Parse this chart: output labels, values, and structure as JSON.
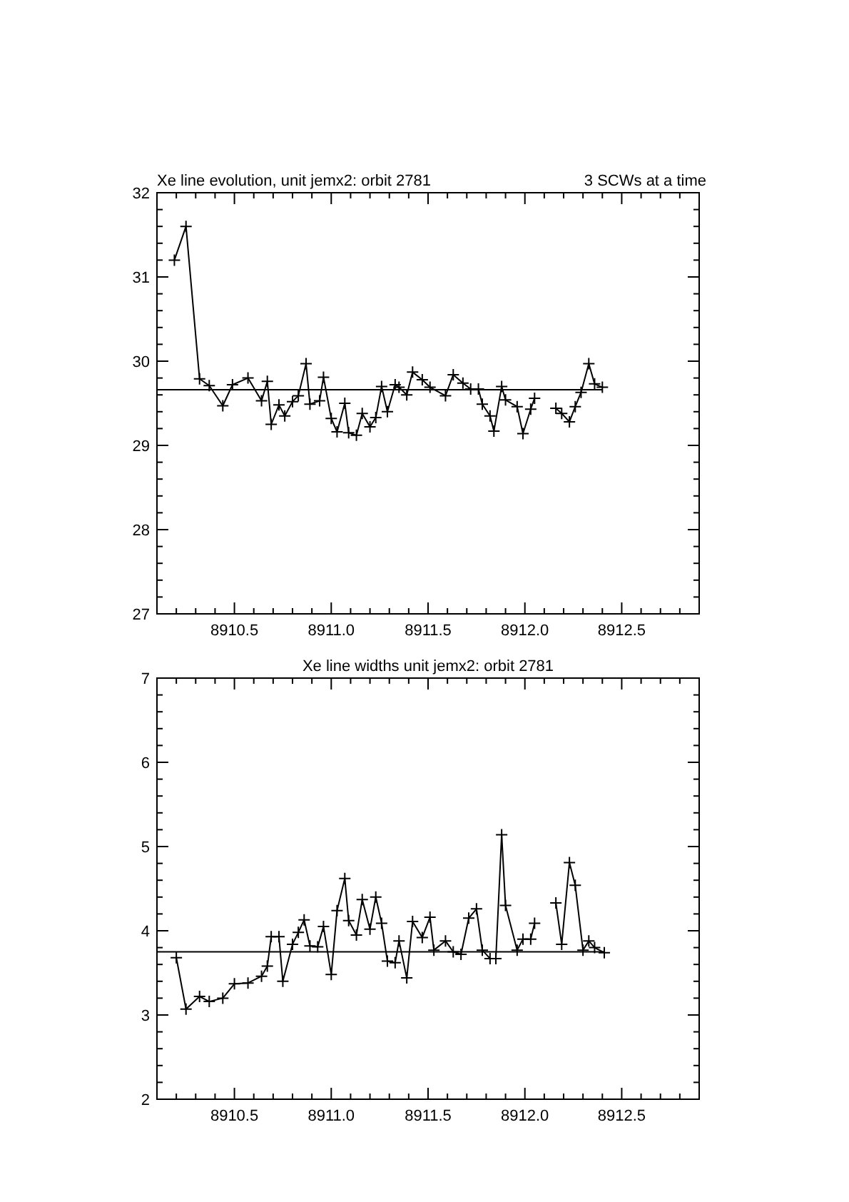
{
  "chart_data": [
    {
      "type": "line",
      "title": "Xe line evolution, unit jemx2: orbit 2781",
      "annotations": [
        "3 SCWs at a time"
      ],
      "marker": "cross",
      "line_style": "solid",
      "grid": false,
      "xlim": [
        8910.1,
        8912.9
      ],
      "ylim": [
        27,
        32
      ],
      "xticks": [
        {
          "value": 8910.1,
          "label": null
        },
        {
          "value": 8910.2,
          "label": null
        },
        {
          "value": 8910.3,
          "label": null
        },
        {
          "value": 8910.4,
          "label": null
        },
        {
          "value": 8910.5,
          "label": "8910.5"
        },
        {
          "value": 8910.6,
          "label": null
        },
        {
          "value": 8910.7,
          "label": null
        },
        {
          "value": 8910.8,
          "label": null
        },
        {
          "value": 8910.9,
          "label": null
        },
        {
          "value": 8911.0,
          "label": "8911.0"
        },
        {
          "value": 8911.1,
          "label": null
        },
        {
          "value": 8911.2,
          "label": null
        },
        {
          "value": 8911.3,
          "label": null
        },
        {
          "value": 8911.4,
          "label": null
        },
        {
          "value": 8911.5,
          "label": "8911.5"
        },
        {
          "value": 8911.6,
          "label": null
        },
        {
          "value": 8911.7,
          "label": null
        },
        {
          "value": 8911.8,
          "label": null
        },
        {
          "value": 8911.9,
          "label": null
        },
        {
          "value": 8912.0,
          "label": "8912.0"
        },
        {
          "value": 8912.1,
          "label": null
        },
        {
          "value": 8912.2,
          "label": null
        },
        {
          "value": 8912.3,
          "label": null
        },
        {
          "value": 8912.4,
          "label": null
        },
        {
          "value": 8912.5,
          "label": "8912.5"
        },
        {
          "value": 8912.6,
          "label": null
        },
        {
          "value": 8912.7,
          "label": null
        },
        {
          "value": 8912.8,
          "label": null
        }
      ],
      "yticks": [
        27,
        {
          "value": 27.2,
          "label": null
        },
        {
          "value": 27.4,
          "label": null
        },
        {
          "value": 27.6,
          "label": null
        },
        {
          "value": 27.8,
          "label": null
        },
        28,
        {
          "value": 28.2,
          "label": null
        },
        {
          "value": 28.4,
          "label": null
        },
        {
          "value": 28.6,
          "label": null
        },
        {
          "value": 28.8,
          "label": null
        },
        29,
        {
          "value": 29.2,
          "label": null
        },
        {
          "value": 29.4,
          "label": null
        },
        {
          "value": 29.6,
          "label": null
        },
        {
          "value": 29.8,
          "label": null
        },
        30,
        {
          "value": 30.2,
          "label": null
        },
        {
          "value": 30.4,
          "label": null
        },
        {
          "value": 30.6,
          "label": null
        },
        {
          "value": 30.8,
          "label": null
        },
        31,
        {
          "value": 31.2,
          "label": null
        },
        {
          "value": 31.4,
          "label": null
        },
        {
          "value": 31.6,
          "label": null
        },
        {
          "value": 31.8,
          "label": null
        },
        32
      ],
      "series": [
        {
          "color": "#000000",
          "x": [
            8910.19,
            8910.25,
            8910.32,
            8910.37,
            8910.44,
            8910.49,
            8910.57,
            8910.64,
            8910.67,
            8910.69,
            8910.73,
            8910.76,
            8910.8,
            8910.83,
            8910.87,
            8910.89,
            8910.94,
            8910.96,
            8911.0,
            8911.03,
            8911.07,
            8911.09,
            8911.13,
            8911.16,
            8911.2,
            8911.23,
            8911.26,
            8911.29,
            8911.33,
            8911.35,
            8911.39,
            8911.42,
            8911.47,
            8911.51,
            8911.59,
            8911.63,
            8911.68,
            8911.72,
            8911.76,
            8911.78,
            8911.82,
            8911.84,
            8911.88,
            8911.9,
            8911.96,
            8911.99,
            8912.03,
            8912.05,
            8912.08,
            8912.12,
            8912.16,
            8912.19,
            8912.23,
            8912.26,
            8912.29,
            8912.33,
            8912.36,
            8912.4
          ],
          "values": [
            31.2,
            31.6,
            29.79,
            29.71,
            29.47,
            29.72,
            29.8,
            29.53,
            29.76,
            29.25,
            29.48,
            29.35,
            29.52,
            29.59,
            29.97,
            29.49,
            29.53,
            29.81,
            29.32,
            29.16,
            29.5,
            29.15,
            29.12,
            29.38,
            29.22,
            29.33,
            29.7,
            29.4,
            29.72,
            29.69,
            29.6,
            29.87,
            29.78,
            29.69,
            29.59,
            29.84,
            29.74,
            29.67,
            29.67,
            29.49,
            29.35,
            29.17,
            29.7,
            29.54,
            29.46,
            29.14,
            29.43,
            29.56,
            null,
            null,
            29.44,
            29.38,
            29.28,
            29.46,
            29.63,
            29.97,
            29.73,
            29.69
          ]
        },
        {
          "color": "#000000",
          "marker": "none",
          "x": [
            8910.1,
            8912.4
          ],
          "values": [
            29.66,
            29.66
          ]
        }
      ]
    },
    {
      "type": "line",
      "title": "Xe line widths unit jemx2: orbit 2781",
      "marker": "cross",
      "line_style": "solid",
      "grid": false,
      "xlim": [
        8910.1,
        8912.9
      ],
      "ylim": [
        2,
        7
      ],
      "xticks": [
        {
          "value": 8910.1,
          "label": null
        },
        {
          "value": 8910.2,
          "label": null
        },
        {
          "value": 8910.3,
          "label": null
        },
        {
          "value": 8910.4,
          "label": null
        },
        {
          "value": 8910.5,
          "label": "8910.5"
        },
        {
          "value": 8910.6,
          "label": null
        },
        {
          "value": 8910.7,
          "label": null
        },
        {
          "value": 8910.8,
          "label": null
        },
        {
          "value": 8910.9,
          "label": null
        },
        {
          "value": 8911.0,
          "label": "8911.0"
        },
        {
          "value": 8911.1,
          "label": null
        },
        {
          "value": 8911.2,
          "label": null
        },
        {
          "value": 8911.3,
          "label": null
        },
        {
          "value": 8911.4,
          "label": null
        },
        {
          "value": 8911.5,
          "label": "8911.5"
        },
        {
          "value": 8911.6,
          "label": null
        },
        {
          "value": 8911.7,
          "label": null
        },
        {
          "value": 8911.8,
          "label": null
        },
        {
          "value": 8911.9,
          "label": null
        },
        {
          "value": 8912.0,
          "label": "8912.0"
        },
        {
          "value": 8912.1,
          "label": null
        },
        {
          "value": 8912.2,
          "label": null
        },
        {
          "value": 8912.3,
          "label": null
        },
        {
          "value": 8912.4,
          "label": null
        },
        {
          "value": 8912.5,
          "label": "8912.5"
        },
        {
          "value": 8912.6,
          "label": null
        },
        {
          "value": 8912.7,
          "label": null
        },
        {
          "value": 8912.8,
          "label": null
        }
      ],
      "yticks": [
        2,
        {
          "value": 2.2,
          "label": null
        },
        {
          "value": 2.4,
          "label": null
        },
        {
          "value": 2.6,
          "label": null
        },
        {
          "value": 2.8,
          "label": null
        },
        3,
        {
          "value": 3.2,
          "label": null
        },
        {
          "value": 3.4,
          "label": null
        },
        {
          "value": 3.6,
          "label": null
        },
        {
          "value": 3.8,
          "label": null
        },
        4,
        {
          "value": 4.2,
          "label": null
        },
        {
          "value": 4.4,
          "label": null
        },
        {
          "value": 4.6,
          "label": null
        },
        {
          "value": 4.8,
          "label": null
        },
        5,
        {
          "value": 5.2,
          "label": null
        },
        {
          "value": 5.4,
          "label": null
        },
        {
          "value": 5.6,
          "label": null
        },
        {
          "value": 5.8,
          "label": null
        },
        6,
        {
          "value": 6.2,
          "label": null
        },
        {
          "value": 6.4,
          "label": null
        },
        {
          "value": 6.6,
          "label": null
        },
        {
          "value": 6.8,
          "label": null
        },
        7
      ],
      "series": [
        {
          "color": "#000000",
          "x": [
            8910.2,
            8910.25,
            8910.32,
            8910.37,
            8910.44,
            8910.5,
            8910.57,
            8910.64,
            8910.67,
            8910.69,
            8910.73,
            8910.75,
            8910.8,
            8910.83,
            8910.86,
            8910.89,
            8910.93,
            8910.96,
            8911.0,
            8911.03,
            8911.07,
            8911.09,
            8911.13,
            8911.16,
            8911.2,
            8911.23,
            8911.26,
            8911.29,
            8911.33,
            8911.35,
            8911.39,
            8911.42,
            8911.47,
            8911.51,
            8911.53,
            8911.59,
            8911.63,
            8911.67,
            8911.71,
            8911.75,
            8911.78,
            8911.82,
            8911.85,
            8911.88,
            8911.9,
            8911.96,
            8911.99,
            8912.03,
            8912.05,
            8912.1,
            8912.16,
            8912.19,
            8912.23,
            8912.26,
            8912.3,
            8912.33,
            8912.36,
            8912.41
          ],
          "values": [
            3.68,
            3.07,
            3.22,
            3.16,
            3.2,
            3.37,
            3.38,
            3.46,
            3.58,
            3.93,
            3.93,
            3.4,
            3.84,
            3.98,
            4.13,
            3.82,
            3.81,
            4.05,
            3.48,
            4.24,
            4.62,
            4.12,
            3.95,
            4.37,
            4.02,
            4.4,
            4.09,
            3.64,
            3.62,
            3.88,
            3.44,
            4.11,
            3.92,
            4.16,
            3.77,
            3.88,
            3.75,
            3.72,
            4.15,
            4.26,
            3.77,
            3.67,
            3.67,
            5.14,
            4.3,
            3.77,
            3.9,
            3.9,
            4.09,
            null,
            4.33,
            3.84,
            4.81,
            4.54,
            3.77,
            3.88,
            3.8,
            3.74
          ]
        },
        {
          "color": "#000000",
          "marker": "none",
          "x": [
            8910.1,
            8912.41
          ],
          "values": [
            3.75,
            3.75
          ]
        }
      ]
    }
  ]
}
